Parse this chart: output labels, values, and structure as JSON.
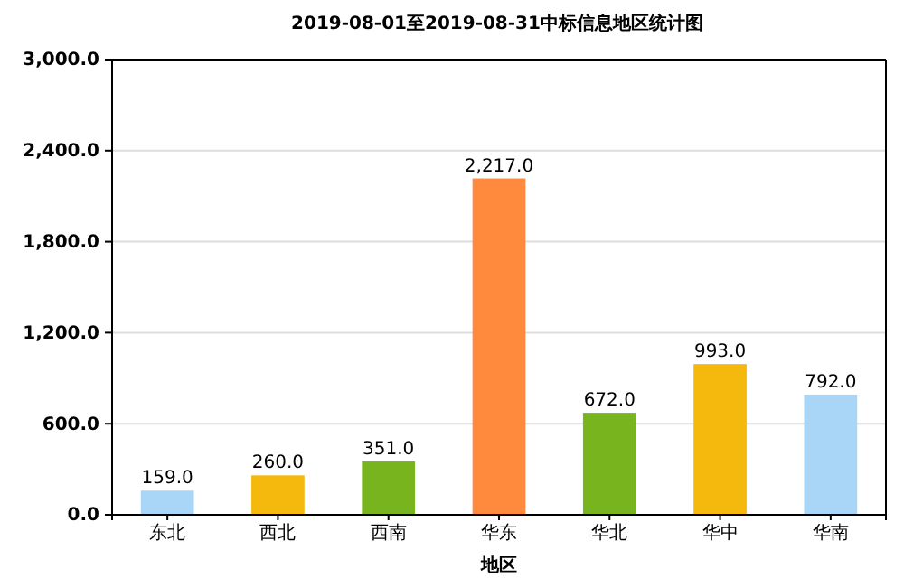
{
  "chart_data": {
    "type": "bar",
    "title": "2019-08-01至2019-08-31中标信息地区统计图",
    "xlabel": "地区",
    "categories": [
      "东北",
      "西北",
      "西南",
      "华东",
      "华北",
      "华中",
      "华南"
    ],
    "values": [
      159,
      260,
      351,
      2217,
      672,
      993,
      792
    ],
    "colors": [
      "#a9d5f7",
      "#f5b90d",
      "#78b41e",
      "#ff8a3d",
      "#78b41e",
      "#f5b90d",
      "#a9d5f7"
    ],
    "value_labels": [
      "159.0",
      "260.0",
      "351.0",
      "2,217.0",
      "672.0",
      "993.0",
      "792.0"
    ],
    "ylim": [
      0,
      3000
    ],
    "yticks": [
      {
        "value": 0,
        "label": "0.0"
      },
      {
        "value": 600,
        "label": "600.0"
      },
      {
        "value": 1200,
        "label": "1,200.0"
      },
      {
        "value": 1800,
        "label": "1,800.0"
      },
      {
        "value": 2400,
        "label": "2,400.0"
      },
      {
        "value": 3000,
        "label": "3,000.0"
      }
    ],
    "grid": "y"
  }
}
